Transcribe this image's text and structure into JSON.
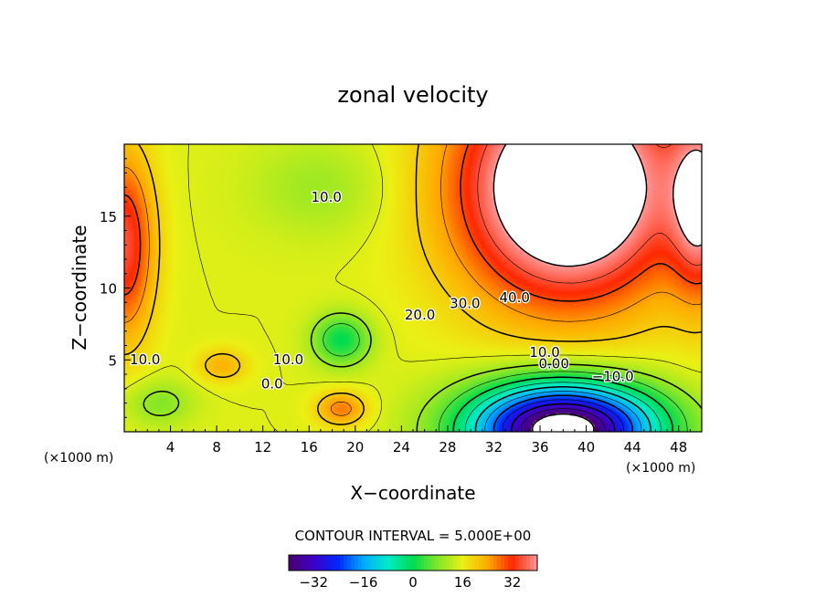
{
  "chart_data": {
    "type": "heatmap",
    "title": "zonal velocity",
    "xlabel": "X−coordinate",
    "ylabel": "Z−coordinate",
    "x_unit": "(×1000 m)",
    "xlim": [
      0,
      50
    ],
    "ylim": [
      0,
      20
    ],
    "x_ticks": [
      "4",
      "8",
      "12",
      "16",
      "20",
      "24",
      "28",
      "32",
      "36",
      "40",
      "44",
      "48"
    ],
    "y_ticks": [
      "5",
      "10",
      "15"
    ],
    "contour_interval_text": "CONTOUR INTERVAL = 5.000E+00",
    "contour_interval": 5.0,
    "colorbar": {
      "range": [
        -40,
        40
      ],
      "tick_labels": [
        "−32",
        "−16",
        "0",
        "16",
        "32"
      ]
    },
    "contour_labels": [
      {
        "text": "10.0",
        "x": 17.5,
        "y": 16.3
      },
      {
        "text": "30.0",
        "x": 29.5,
        "y": 8.9
      },
      {
        "text": "40.0",
        "x": 33.8,
        "y": 9.3
      },
      {
        "text": "20.0",
        "x": 25.6,
        "y": 8.1
      },
      {
        "text": "10.0",
        "x": 36.4,
        "y": 5.5
      },
      {
        "text": "0.00",
        "x": 37.2,
        "y": 4.7
      },
      {
        "text": "−10.0",
        "x": 42.3,
        "y": 3.8
      },
      {
        "text": "10.0",
        "x": 1.8,
        "y": 5.0
      },
      {
        "text": "10.0",
        "x": 14.2,
        "y": 5.0
      },
      {
        "text": "0.0",
        "x": 12.8,
        "y": 3.3
      }
    ],
    "features": [
      {
        "kind": "max",
        "x": 38.5,
        "y": 17,
        "approx_value": 50,
        "note": "above colorbar range (blank)"
      },
      {
        "kind": "min",
        "x": 38,
        "y": 0.5,
        "approx_value": -45,
        "note": "below colorbar range (blank)"
      },
      {
        "kind": "max",
        "x": 0.5,
        "y": 13,
        "approx_value": 32
      },
      {
        "kind": "max",
        "x": 49.5,
        "y": 16,
        "approx_value": 34
      },
      {
        "kind": "max",
        "x": 19,
        "y": 1.6,
        "approx_value": 27
      },
      {
        "kind": "max",
        "x": 8.5,
        "y": 4.6,
        "approx_value": 23
      },
      {
        "kind": "min",
        "x": 18.8,
        "y": 6.4,
        "approx_value": -3
      }
    ],
    "legend": "none",
    "grid": false
  }
}
